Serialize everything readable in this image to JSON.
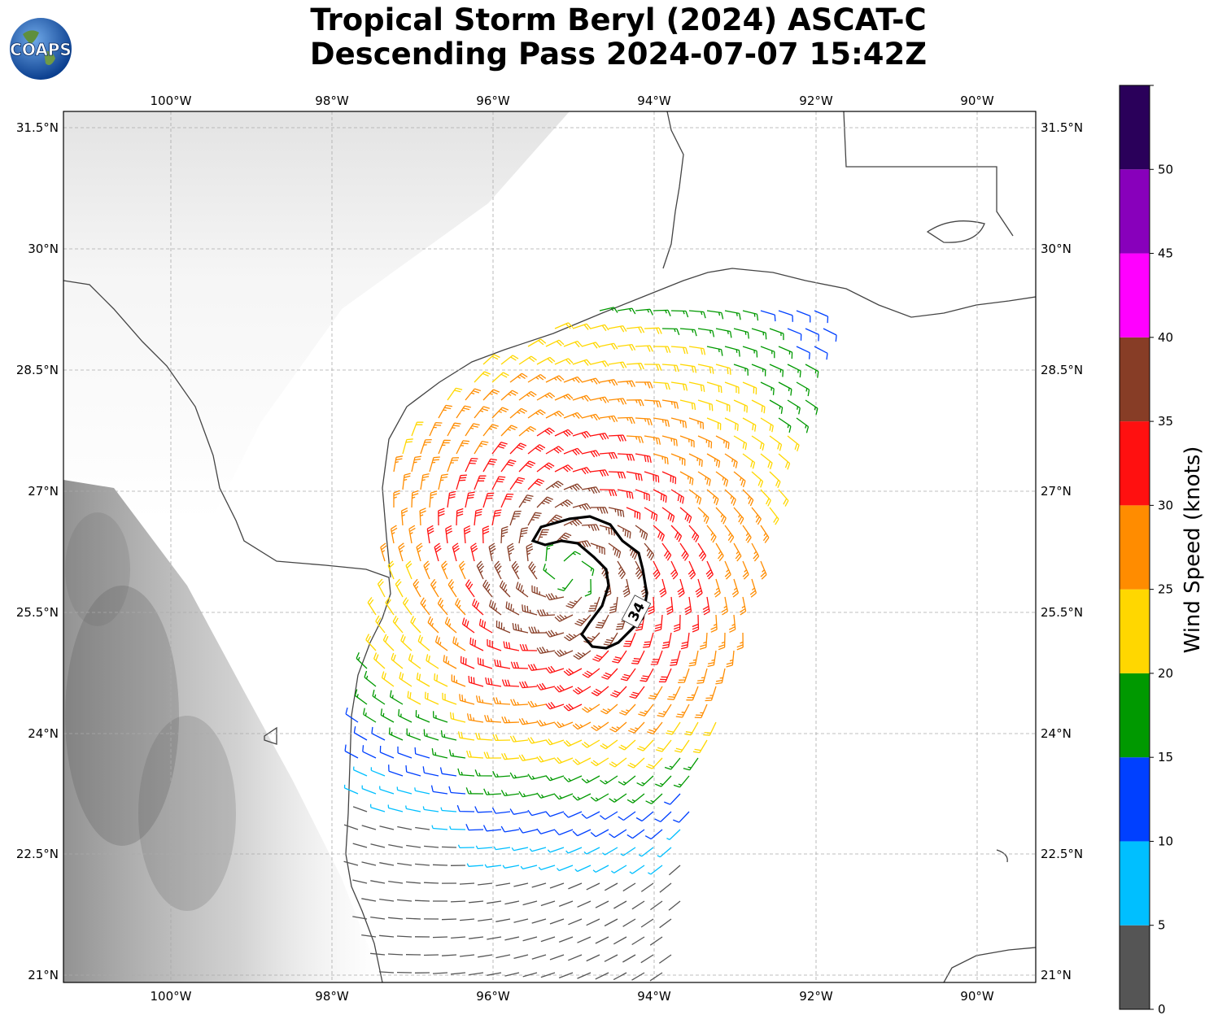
{
  "title": {
    "line1": "Tropical Storm Beryl (2024) ASCAT-C",
    "line2": "Descending Pass 2024-07-07 15:42Z"
  },
  "logo": {
    "text": "COAPS"
  },
  "map": {
    "lon_range": [
      -101.35,
      -89.3
    ],
    "lat_range": [
      20.9,
      31.7
    ],
    "lon_ticks": [
      "100°W",
      "98°W",
      "96°W",
      "94°W",
      "92°W",
      "90°W"
    ],
    "lat_ticks": [
      "31.5°N",
      "30°N",
      "28.5°N",
      "27°N",
      "25.5°N",
      "24°N",
      "22.5°N",
      "21°N"
    ],
    "contour_label": "34",
    "storm_center": {
      "lon": -95.1,
      "lat": 26.0
    }
  },
  "colorbar": {
    "label": "Wind Speed (knots)",
    "ticks": [
      "0",
      "5",
      "10",
      "15",
      "20",
      "25",
      "30",
      "35",
      "40",
      "45",
      "50"
    ],
    "colors": [
      "#555555",
      "#00bfff",
      "#0040ff",
      "#009900",
      "#ffd700",
      "#ff8c00",
      "#ff1010",
      "#873d26",
      "#ff00ff",
      "#8800bb",
      "#2a005a"
    ]
  }
}
